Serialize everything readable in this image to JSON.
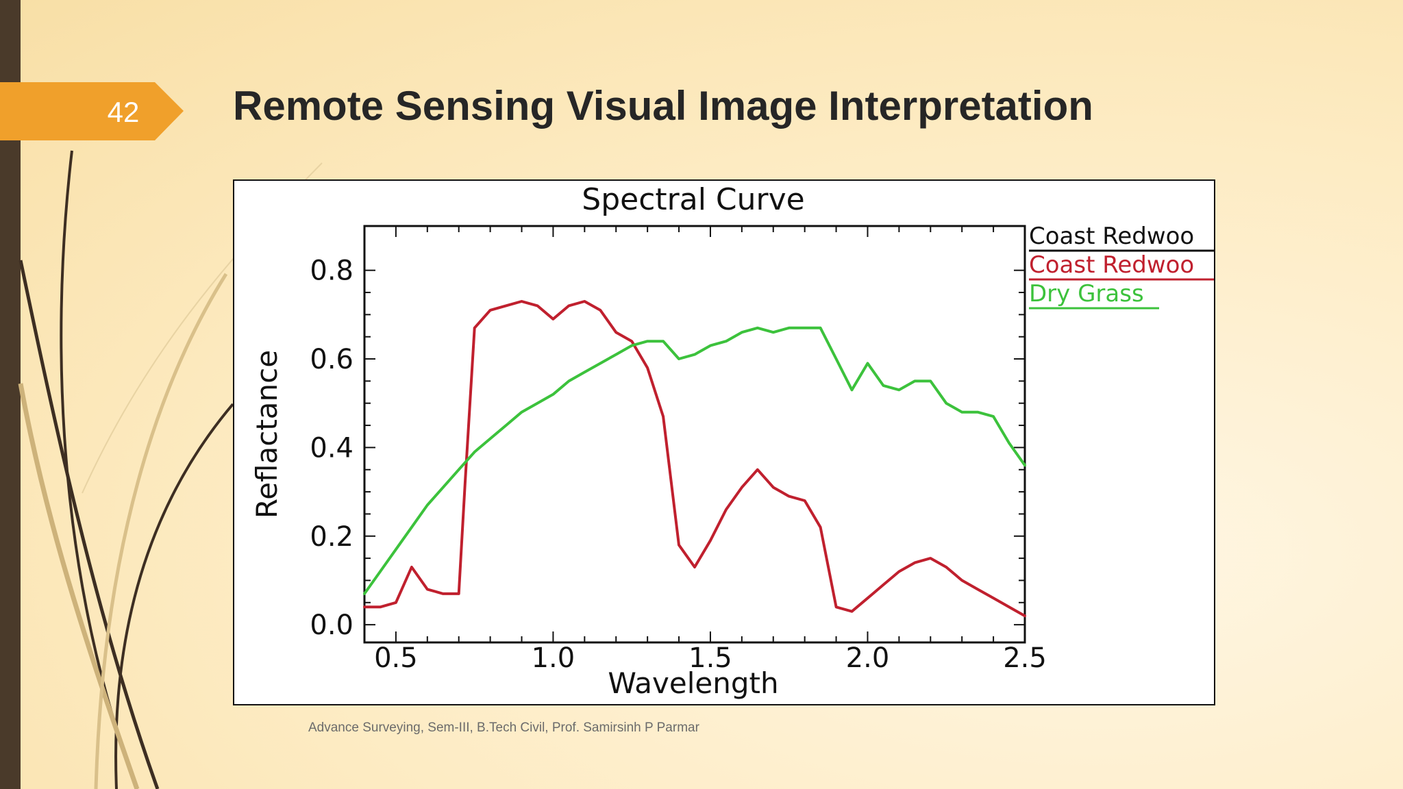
{
  "slide": {
    "number": "42",
    "title": "Remote Sensing Visual Image Interpretation",
    "footer": "Advance Surveying, Sem-III, B.Tech Civil, Prof. Samirsinh P Parmar"
  },
  "colors": {
    "badge": "#f0a02b",
    "left_bar": "#4a3a2a",
    "series_redwood_black": "#111111",
    "series_redwood_red": "#c0202e",
    "series_dry_grass": "#3cc23c"
  },
  "chart_data": {
    "type": "line",
    "title": "Spectral Curve",
    "xlabel": "Wavelength",
    "ylabel": "Reflactance",
    "xlim": [
      0.4,
      2.5
    ],
    "ylim": [
      -0.04,
      0.9
    ],
    "xticks": [
      "0.5",
      "1.0",
      "1.5",
      "2.0",
      "2.5"
    ],
    "xtick_values": [
      0.5,
      1.0,
      1.5,
      2.0,
      2.5
    ],
    "yticks": [
      "0.0",
      "0.2",
      "0.4",
      "0.6",
      "0.8"
    ],
    "ytick_values": [
      0.0,
      0.2,
      0.4,
      0.6,
      0.8
    ],
    "grid": false,
    "legend_position": "right",
    "legend": [
      "Coast Redwoo",
      "Coast Redwoo",
      "Dry Grass"
    ],
    "series": [
      {
        "name": "Coast Redwoo",
        "color": "#111111",
        "x": [],
        "values": []
      },
      {
        "name": "Coast Redwoo",
        "color": "#c0202e",
        "x": [
          0.4,
          0.45,
          0.5,
          0.55,
          0.6,
          0.65,
          0.7,
          0.72,
          0.75,
          0.8,
          0.85,
          0.9,
          0.95,
          1.0,
          1.05,
          1.1,
          1.15,
          1.2,
          1.25,
          1.3,
          1.35,
          1.4,
          1.45,
          1.5,
          1.55,
          1.6,
          1.65,
          1.7,
          1.75,
          1.8,
          1.85,
          1.9,
          1.95,
          2.0,
          2.05,
          2.1,
          2.15,
          2.2,
          2.25,
          2.3,
          2.35,
          2.4,
          2.45,
          2.5
        ],
        "values": [
          0.04,
          0.04,
          0.05,
          0.13,
          0.08,
          0.07,
          0.07,
          0.32,
          0.67,
          0.71,
          0.72,
          0.73,
          0.72,
          0.69,
          0.72,
          0.73,
          0.71,
          0.66,
          0.64,
          0.58,
          0.47,
          0.18,
          0.13,
          0.19,
          0.26,
          0.31,
          0.35,
          0.31,
          0.29,
          0.28,
          0.22,
          0.04,
          0.03,
          0.06,
          0.09,
          0.12,
          0.14,
          0.15,
          0.13,
          0.1,
          0.08,
          0.06,
          0.04,
          0.02
        ]
      },
      {
        "name": "Dry Grass",
        "color": "#3cc23c",
        "x": [
          0.4,
          0.45,
          0.5,
          0.55,
          0.6,
          0.65,
          0.7,
          0.75,
          0.8,
          0.85,
          0.9,
          0.95,
          1.0,
          1.05,
          1.1,
          1.15,
          1.2,
          1.25,
          1.3,
          1.35,
          1.4,
          1.45,
          1.5,
          1.55,
          1.6,
          1.65,
          1.7,
          1.75,
          1.8,
          1.85,
          1.9,
          1.95,
          2.0,
          2.05,
          2.1,
          2.15,
          2.2,
          2.25,
          2.3,
          2.35,
          2.4,
          2.45,
          2.5
        ],
        "values": [
          0.07,
          0.12,
          0.17,
          0.22,
          0.27,
          0.31,
          0.35,
          0.39,
          0.42,
          0.45,
          0.48,
          0.5,
          0.52,
          0.55,
          0.57,
          0.59,
          0.61,
          0.63,
          0.64,
          0.64,
          0.6,
          0.61,
          0.63,
          0.64,
          0.66,
          0.67,
          0.66,
          0.67,
          0.67,
          0.67,
          0.6,
          0.53,
          0.59,
          0.54,
          0.53,
          0.55,
          0.55,
          0.5,
          0.48,
          0.48,
          0.47,
          0.41,
          0.36
        ]
      }
    ]
  }
}
